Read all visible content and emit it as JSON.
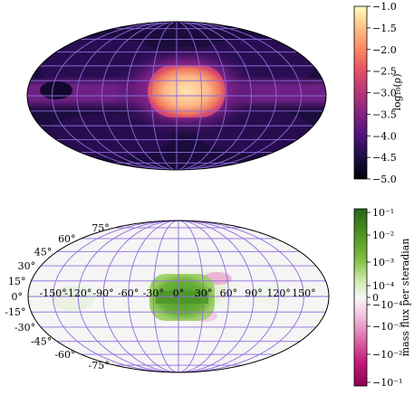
{
  "chart_data": [
    {
      "type": "heatmap",
      "projection": "mollweide",
      "grid": true,
      "grid_color": "#8e6bdc",
      "map_tick_labels_shown": false,
      "colormap": "magma",
      "colorbar": {
        "label": "log₁₀(ρ)",
        "position": "right",
        "range": [
          -5.0,
          -1.0
        ],
        "ticks": [
          -1.0,
          -1.5,
          -2.0,
          -2.5,
          -3.0,
          -3.5,
          -4.0,
          -4.5,
          -5.0
        ],
        "tick_labels": [
          "−1.0",
          "−1.5",
          "−2.0",
          "−2.5",
          "−3.0",
          "−3.5",
          "−4.0",
          "−4.5",
          "−5.0"
        ]
      }
    },
    {
      "type": "heatmap",
      "projection": "mollweide",
      "grid": true,
      "grid_color": "#8e6bdc",
      "colormap": "PiYG (symlog)",
      "longitude_ticks": [
        -150,
        -120,
        -90,
        -60,
        -30,
        0,
        30,
        60,
        90,
        120,
        150
      ],
      "longitude_tick_labels": [
        "-150°",
        "-120°",
        "-90°",
        "-60°",
        "-30°",
        "0°",
        "30°",
        "60°",
        "90°",
        "120°",
        "150°"
      ],
      "latitude_ticks": [
        75,
        60,
        45,
        30,
        15,
        0,
        -15,
        -30,
        -45,
        -60,
        -75
      ],
      "latitude_tick_labels": [
        "75°",
        "60°",
        "45°",
        "30°",
        "15°",
        "0°",
        "-15°",
        "-30°",
        "-45°",
        "-60°",
        "-75°"
      ],
      "colorbar": {
        "label": "mass flux per steradian",
        "position": "right",
        "scale": "symlog",
        "range": [
          -0.1,
          0.1
        ],
        "tick_labels": [
          "10⁻¹",
          "10⁻²",
          "10⁻³",
          "10⁻⁴",
          "0",
          "−10⁻⁴",
          "−10⁻³",
          "−10⁻²",
          "−10⁻¹"
        ]
      }
    }
  ]
}
